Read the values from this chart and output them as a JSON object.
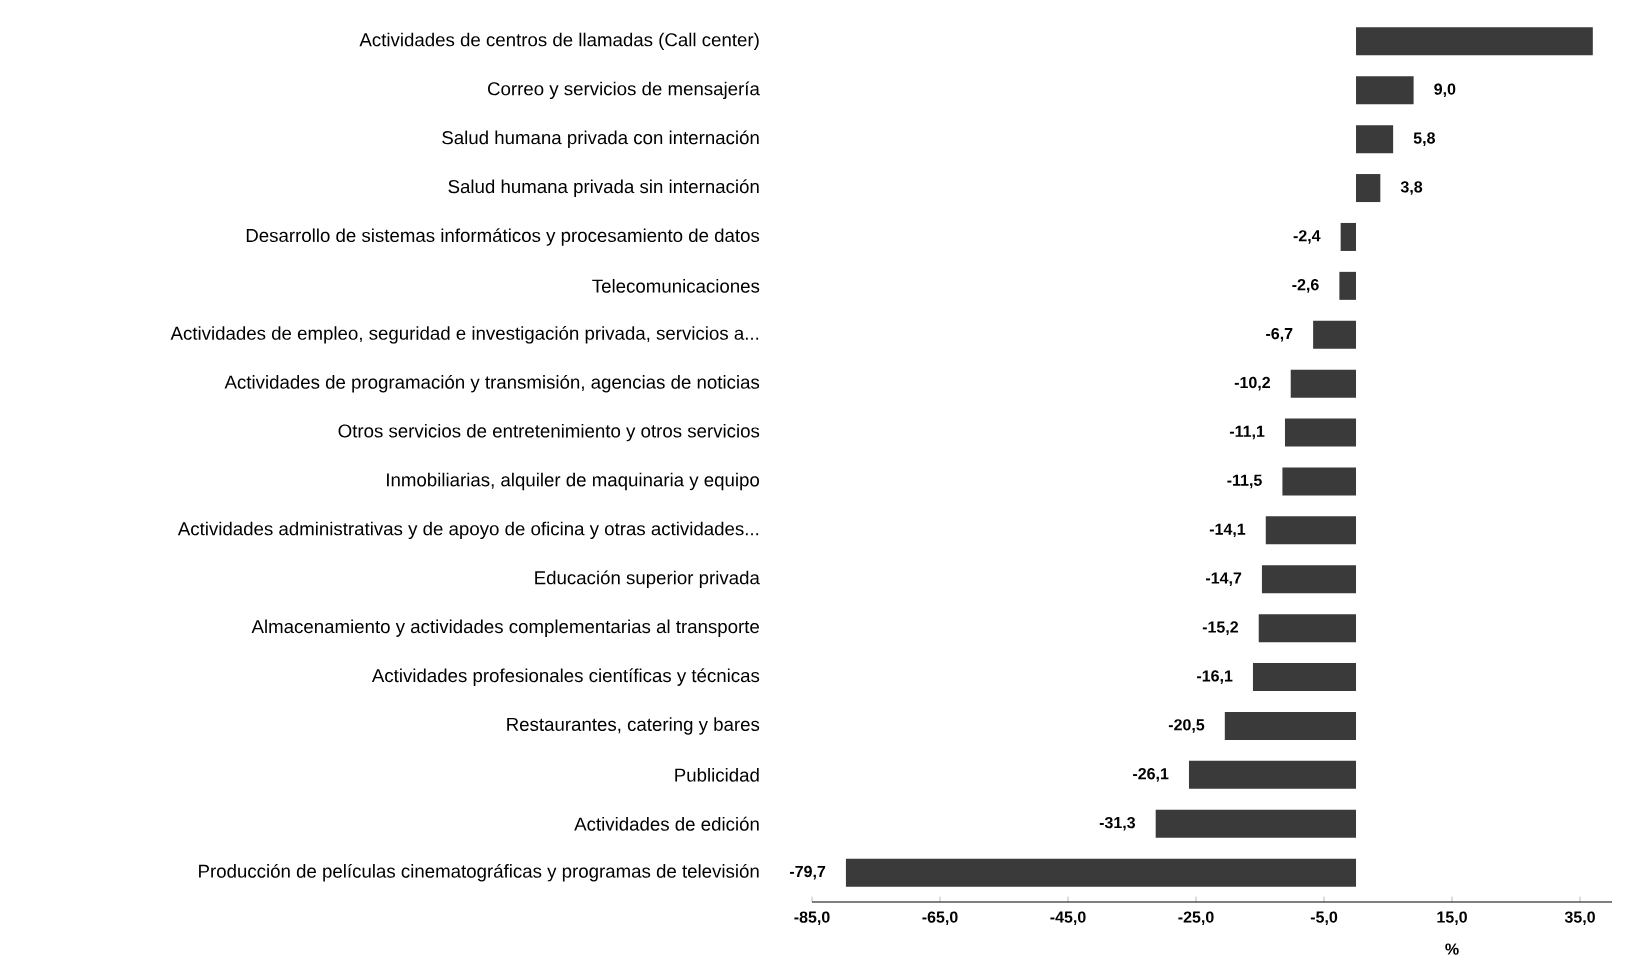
{
  "chart_data": {
    "type": "bar",
    "orientation": "horizontal",
    "xlabel": "%",
    "color": "#3a3a3a",
    "categories": [
      "Actividades de centros de llamadas (Call center)",
      "Correo y servicios de mensajería",
      "Salud humana privada con internación",
      "Salud humana privada sin internación",
      "Desarrollo de sistemas informáticos y procesamiento de datos",
      "Telecomunicaciones",
      "Actividades de empleo, seguridad e investigación privada, servicios a...",
      "Actividades de programación y transmisión, agencias de noticias",
      "Otros servicios de entretenimiento y otros servicios",
      "Inmobiliarias, alquiler de maquinaria y equipo",
      "Actividades administrativas y de apoyo de oficina y otras actividades...",
      "Educación superior privada",
      "Almacenamiento y actividades complementarias al transporte",
      "Actividades profesionales científicas y técnicas",
      "Restaurantes, catering y bares",
      "Publicidad",
      "Actividades de edición",
      "Producción de películas cinematográficas y programas de televisión"
    ],
    "values": [
      37,
      9.0,
      5.8,
      3.8,
      -2.4,
      -2.6,
      -6.7,
      -10.2,
      -11.1,
      -11.5,
      -14.1,
      -14.7,
      -15.2,
      -16.1,
      -20.5,
      -26.1,
      -31.3,
      -79.7
    ],
    "value_labels": [
      null,
      "9,0",
      "5,8",
      "3,8",
      "-2,4",
      "-2,6",
      "-6,7",
      "-10,2",
      "-11,1",
      "-11,5",
      "-14,1",
      "-14,7",
      "-15,2",
      "-16,1",
      "-20,5",
      "-26,1",
      "-31,3",
      "-79,7"
    ],
    "xlim": [
      -85,
      40
    ],
    "xticks": [
      {
        "value": -85,
        "label": "-85,0"
      },
      {
        "value": -65,
        "label": "-65,0"
      },
      {
        "value": -45,
        "label": "-45,0"
      },
      {
        "value": -25,
        "label": "-25,0"
      },
      {
        "value": -5,
        "label": "-5,0"
      },
      {
        "value": 15,
        "label": "15,0"
      },
      {
        "value": 35,
        "label": "35,0"
      }
    ]
  }
}
